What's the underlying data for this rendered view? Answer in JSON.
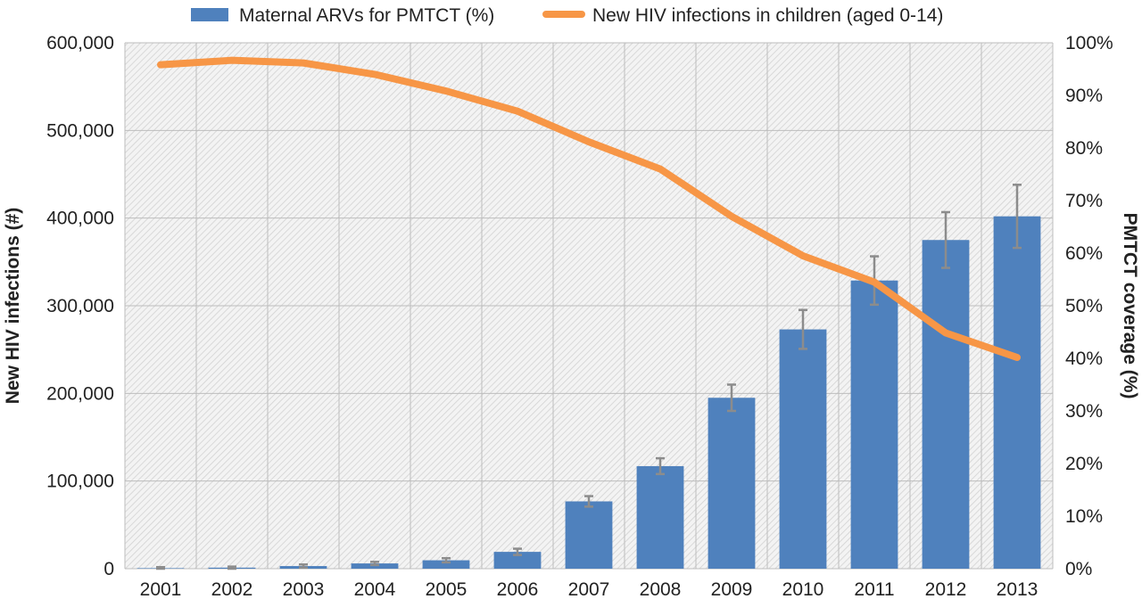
{
  "chart_data": {
    "type": "bar",
    "categories": [
      "2001",
      "2002",
      "2003",
      "2004",
      "2005",
      "2006",
      "2007",
      "2008",
      "2009",
      "2010",
      "2011",
      "2012",
      "2013"
    ],
    "series": [
      {
        "name": "Maternal ARVs for PMTCT (%)",
        "type": "bar",
        "axis": "right",
        "values": [
          0.1,
          0.2,
          0.5,
          1.0,
          1.6,
          3.2,
          12.8,
          19.5,
          32.5,
          45.5,
          54.8,
          62.5,
          67.0
        ],
        "error": [
          0.2,
          0.2,
          0.3,
          0.3,
          0.4,
          0.6,
          1.0,
          1.5,
          2.5,
          3.7,
          4.6,
          5.3,
          6.0
        ],
        "color": "#4f81bd"
      },
      {
        "name": "New HIV infections in children (aged 0-14)",
        "type": "line",
        "axis": "left",
        "values": [
          575000,
          580000,
          577000,
          564000,
          545000,
          522000,
          487000,
          456000,
          402000,
          357000,
          327000,
          269000,
          241000
        ],
        "color": "#f79646"
      }
    ],
    "left_axis": {
      "label": "New HIV infections (#)",
      "range": [
        0,
        600000
      ],
      "ticks": [
        "0",
        "100,000",
        "200,000",
        "300,000",
        "400,000",
        "500,000",
        "600,000"
      ]
    },
    "right_axis": {
      "label": "PMTCT coverage (%)",
      "range": [
        0,
        100
      ],
      "ticks": [
        "0%",
        "10%",
        "20%",
        "30%",
        "40%",
        "50%",
        "60%",
        "70%",
        "80%",
        "90%",
        "100%"
      ]
    },
    "grid": true,
    "legend": "top-center"
  }
}
